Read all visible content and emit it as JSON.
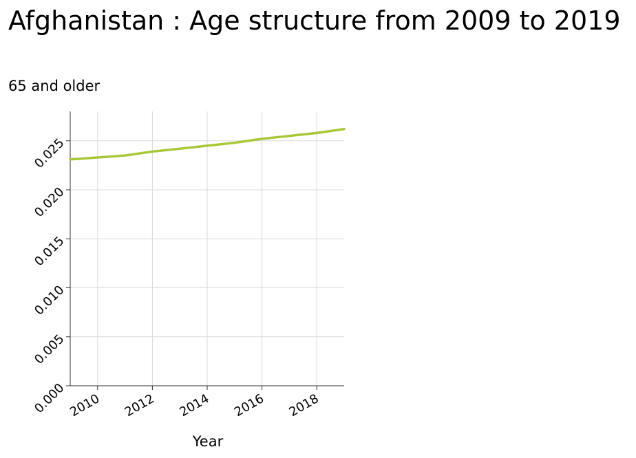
{
  "chart_data": {
    "type": "line",
    "title": "Afghanistan : Age structure from 2009 to 2019",
    "subtitle": "65 and older",
    "xlabel": "Year",
    "ylabel": "",
    "x": [
      2009,
      2010,
      2011,
      2012,
      2013,
      2014,
      2015,
      2016,
      2017,
      2018,
      2019
    ],
    "series": [
      {
        "values": [
          0.0231,
          0.0233,
          0.0235,
          0.0239,
          0.0242,
          0.0245,
          0.0248,
          0.0252,
          0.0255,
          0.0258,
          0.0262
        ]
      }
    ],
    "xlim": [
      2009,
      2019
    ],
    "ylim": [
      0,
      0.028
    ],
    "x_ticks": [
      "2010",
      "2012",
      "2014",
      "2016",
      "2018"
    ],
    "y_ticks": [
      "0.000",
      "0.005",
      "0.010",
      "0.015",
      "0.020",
      "0.025"
    ],
    "grid": true,
    "line_color": "#a8c83a"
  }
}
